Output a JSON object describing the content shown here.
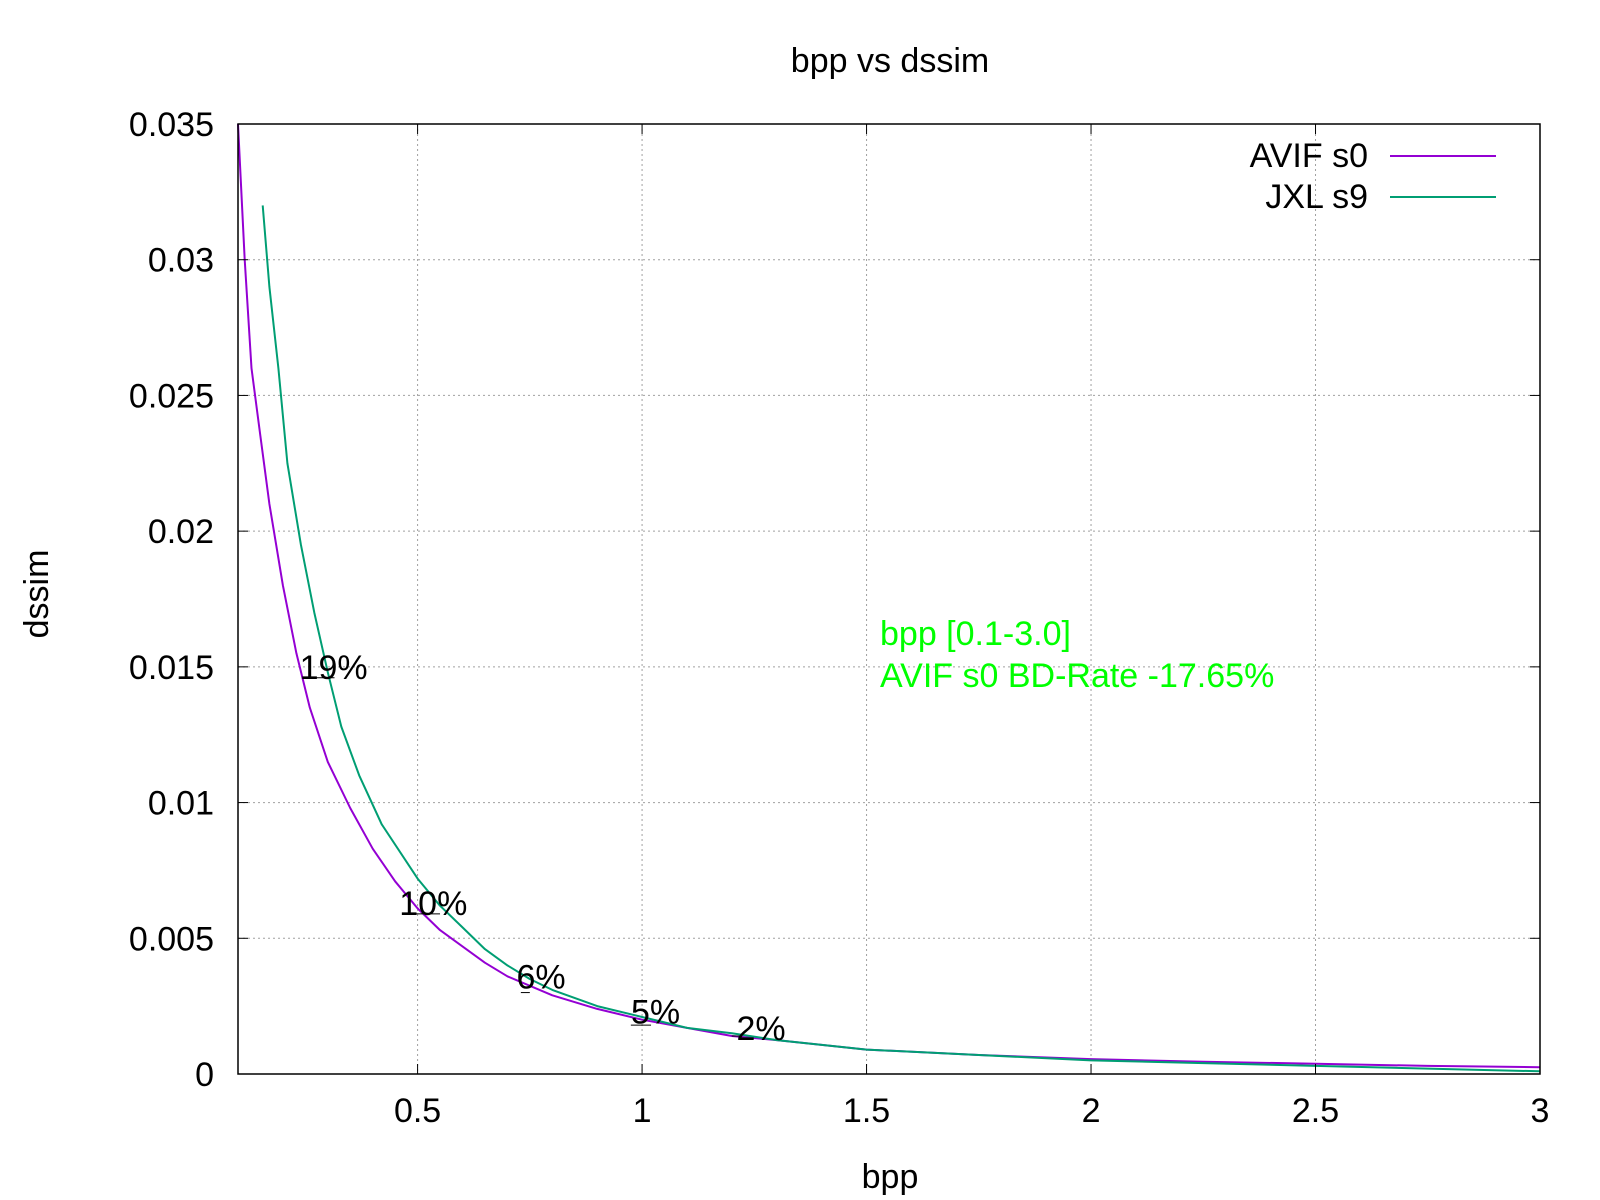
{
  "chart_data": {
    "type": "line",
    "title": "bpp vs dssim",
    "xlabel": "bpp",
    "ylabel": "dssim",
    "xlim": [
      0.1,
      3.0
    ],
    "ylim": [
      0,
      0.035
    ],
    "xticks": [
      {
        "value": 0.5,
        "label": "0.5"
      },
      {
        "value": 1.0,
        "label": "1"
      },
      {
        "value": 1.5,
        "label": "1.5"
      },
      {
        "value": 2.0,
        "label": "2"
      },
      {
        "value": 2.5,
        "label": "2.5"
      },
      {
        "value": 3.0,
        "label": "3"
      }
    ],
    "yticks": [
      {
        "value": 0,
        "label": "0"
      },
      {
        "value": 0.005,
        "label": "0.005"
      },
      {
        "value": 0.01,
        "label": "0.01"
      },
      {
        "value": 0.015,
        "label": "0.015"
      },
      {
        "value": 0.02,
        "label": "0.02"
      },
      {
        "value": 0.025,
        "label": "0.025"
      },
      {
        "value": 0.03,
        "label": "0.03"
      },
      {
        "value": 0.035,
        "label": "0.035"
      }
    ],
    "grid": true,
    "legend_position": "top-right",
    "series": [
      {
        "name": "AVIF s0",
        "color": "#9400d3",
        "points": [
          [
            0.1,
            0.035
          ],
          [
            0.115,
            0.03
          ],
          [
            0.13,
            0.026
          ],
          [
            0.15,
            0.0235
          ],
          [
            0.17,
            0.021
          ],
          [
            0.2,
            0.018
          ],
          [
            0.23,
            0.0155
          ],
          [
            0.26,
            0.0135
          ],
          [
            0.3,
            0.0115
          ],
          [
            0.35,
            0.0098
          ],
          [
            0.4,
            0.0083
          ],
          [
            0.45,
            0.0071
          ],
          [
            0.5,
            0.0061
          ],
          [
            0.55,
            0.0053
          ],
          [
            0.6,
            0.0047
          ],
          [
            0.65,
            0.0041
          ],
          [
            0.7,
            0.0036
          ],
          [
            0.8,
            0.0029
          ],
          [
            0.9,
            0.0024
          ],
          [
            1.0,
            0.002
          ],
          [
            1.1,
            0.0017
          ],
          [
            1.2,
            0.0014
          ],
          [
            1.3,
            0.00125
          ],
          [
            1.5,
            0.0009
          ],
          [
            1.75,
            0.0007
          ],
          [
            2.0,
            0.00055
          ],
          [
            2.25,
            0.00045
          ],
          [
            2.5,
            0.00038
          ],
          [
            2.75,
            0.0003
          ],
          [
            3.0,
            0.00025
          ]
        ]
      },
      {
        "name": "JXL s9",
        "color": "#009e73",
        "points": [
          [
            0.155,
            0.032
          ],
          [
            0.17,
            0.029
          ],
          [
            0.19,
            0.026
          ],
          [
            0.21,
            0.0225
          ],
          [
            0.24,
            0.0195
          ],
          [
            0.27,
            0.017
          ],
          [
            0.3,
            0.0148
          ],
          [
            0.33,
            0.0128
          ],
          [
            0.37,
            0.011
          ],
          [
            0.42,
            0.0092
          ],
          [
            0.5,
            0.0072
          ],
          [
            0.55,
            0.0062
          ],
          [
            0.6,
            0.0054
          ],
          [
            0.65,
            0.0046
          ],
          [
            0.7,
            0.004
          ],
          [
            0.75,
            0.0035
          ],
          [
            0.8,
            0.0031
          ],
          [
            0.9,
            0.0025
          ],
          [
            1.0,
            0.0021
          ],
          [
            1.05,
            0.0019
          ],
          [
            1.1,
            0.0017
          ],
          [
            1.2,
            0.0015
          ],
          [
            1.3,
            0.00125
          ],
          [
            1.5,
            0.0009
          ],
          [
            1.75,
            0.0007
          ],
          [
            2.0,
            0.0005
          ],
          [
            2.25,
            0.0004
          ],
          [
            2.5,
            0.0003
          ],
          [
            2.75,
            0.0002
          ],
          [
            3.0,
            0.0001
          ]
        ]
      }
    ],
    "annotations": [
      {
        "label": "19%",
        "x": 0.265,
        "y": 0.0146,
        "x_end": 0.315,
        "tx": 0.313,
        "ty": 0.015
      },
      {
        "label": "10%",
        "x": 0.485,
        "y": 0.0059,
        "x_end": 0.55,
        "tx": 0.535,
        "ty": 0.0063
      },
      {
        "label": "6%",
        "x": 0.73,
        "y": 0.003,
        "x_end": 0.75,
        "tx": 0.775,
        "ty": 0.0036
      },
      {
        "label": "5%",
        "x": 0.975,
        "y": 0.0018,
        "x_end": 1.02,
        "tx": 1.03,
        "ty": 0.0023
      },
      {
        "label": "2%",
        "x": 1.2,
        "y": 0.0014,
        "x_end": 1.22,
        "tx": 1.265,
        "ty": 0.0017
      }
    ],
    "notes": {
      "color": "#00ff00",
      "range_label": "bpp [0.1-3.0]",
      "bd_rate_label": "AVIF s0 BD-Rate -17.65%"
    }
  }
}
